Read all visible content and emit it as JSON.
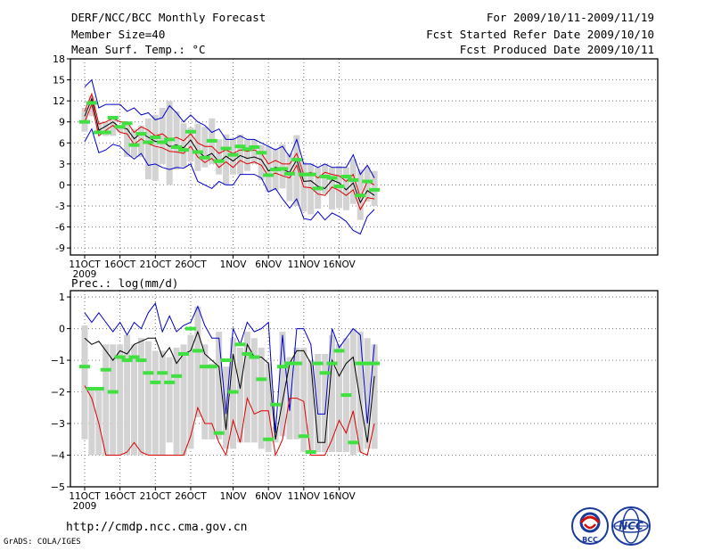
{
  "header": {
    "title": "DERF/NCC/BCC Monthly Forecast",
    "member_size": "Member Size=40",
    "variable": "Mean Surf. Temp.: °C",
    "period": "For 2009/10/11-2009/11/19",
    "started": "Fcst Started Refer Date 2009/10/10",
    "produced": "Fcst Produced Date 2009/10/11"
  },
  "precip_label": "Prec.: log(mm/d)",
  "url": "http://cmdp.ncc.cma.gov.cn",
  "credit": "GrADS: COLA/IGES",
  "logos": {
    "left_text": "BCC",
    "right_text": "NCC"
  },
  "colors": {
    "grey_bar": "#d3d3d3",
    "green": "#40e040",
    "max_line": "#0000cc",
    "min_line": "#dd0000",
    "mean_line": "#000000"
  },
  "chart_data": [
    {
      "type": "line",
      "title": "Mean Surf. Temp.: °C",
      "ylim": [
        -10,
        18
      ],
      "yticks": [
        -9,
        -6,
        -3,
        0,
        3,
        6,
        9,
        12,
        15,
        18
      ],
      "xlabels": [
        {
          "day": 0,
          "label": "11OCT",
          "sub": "2009"
        },
        {
          "day": 5,
          "label": "16OCT"
        },
        {
          "day": 10,
          "label": "21OCT"
        },
        {
          "day": 15,
          "label": "26OCT"
        },
        {
          "day": 21,
          "label": "1NOV"
        },
        {
          "day": 26,
          "label": "6NOV"
        },
        {
          "day": 31,
          "label": "11NOV"
        },
        {
          "day": 36,
          "label": "16NOV"
        }
      ],
      "series": [
        {
          "name": "max",
          "values": [
            14,
            15,
            11,
            11.5,
            11.5,
            11.5,
            10.5,
            11,
            10,
            10.3,
            9.3,
            9.6,
            11.3,
            10.3,
            9,
            10,
            9,
            8.5,
            7.5,
            8,
            6.5,
            6.5,
            7,
            6.5,
            6.5,
            6,
            5.5,
            5,
            5.5,
            4,
            6.5,
            3,
            3,
            2.5,
            3,
            2.5,
            2.5,
            2.5,
            4.3,
            1.5,
            2.8,
            1
          ]
        },
        {
          "name": "upper",
          "values": [
            10.5,
            13,
            8.7,
            9,
            9.5,
            9,
            9,
            7.5,
            8.3,
            7.8,
            7,
            7.3,
            6.5,
            6.8,
            6.3,
            7.3,
            6,
            5.5,
            5.5,
            4.5,
            5,
            4.5,
            5,
            4.8,
            5,
            4.5,
            3,
            3.5,
            3,
            3,
            4.5,
            1.5,
            1.8,
            1,
            1.8,
            1.5,
            1.3,
            0.5,
            1.5,
            -1.8,
            0.5,
            0
          ]
        },
        {
          "name": "mean",
          "values": [
            9.8,
            12.3,
            7.8,
            8.4,
            9,
            8.2,
            8,
            6.6,
            7.4,
            6.8,
            6.2,
            6.2,
            5.5,
            5.7,
            5.3,
            6.4,
            4.8,
            4,
            4.5,
            3.3,
            4.1,
            3.4,
            4.2,
            3.8,
            4,
            3.6,
            2,
            2.5,
            2.2,
            1.8,
            3.6,
            0.5,
            0.6,
            -0.2,
            -0.5,
            0.7,
            0.3,
            -0.7,
            0.3,
            -2.5,
            -0.8,
            -1.5
          ]
        },
        {
          "name": "lower",
          "values": [
            9,
            11.5,
            7,
            7.8,
            8.5,
            7.5,
            7.3,
            5.8,
            6.6,
            5.9,
            5.5,
            5.3,
            4.8,
            4.7,
            4.5,
            5.5,
            4,
            3.2,
            3.8,
            2.5,
            3.3,
            2.5,
            3.5,
            3,
            3.3,
            2.8,
            1.2,
            1.7,
            1.3,
            1,
            2.8,
            -0.3,
            -0.4,
            -1.3,
            -1.5,
            -0.3,
            -0.8,
            -1.5,
            -0.7,
            -3.5,
            -1.8,
            -2
          ]
        },
        {
          "name": "min",
          "values": [
            6.2,
            8,
            4.6,
            5,
            5.8,
            5.5,
            4.5,
            3.7,
            4.5,
            2.8,
            3,
            2.5,
            2.2,
            2.5,
            2.4,
            3,
            0.5,
            0,
            -0.5,
            0.5,
            0,
            0,
            1.5,
            1.5,
            1.5,
            1,
            -1,
            -0.5,
            -2,
            -3.3,
            -2,
            -4.8,
            -5,
            -3.8,
            -5,
            -4,
            -4.5,
            -5.2,
            -6.5,
            -7,
            -4.5,
            -3.5
          ]
        },
        {
          "name": "green",
          "values": [
            9,
            11.7,
            7.5,
            7.5,
            9.6,
            8.3,
            8.8,
            5.7,
            7.3,
            6.1,
            6.8,
            6.1,
            6.5,
            5.4,
            5,
            7.6,
            4.7,
            3.9,
            6.3,
            3.4,
            5.2,
            4.3,
            5.5,
            5.1,
            5.4,
            4.6,
            1.4,
            2.2,
            2.3,
            1.6,
            3.6,
            1.5,
            1.5,
            -0.5,
            1.2,
            1,
            -0.2,
            1.2,
            0.7,
            -1.5,
            0.5,
            -0.7
          ]
        },
        {
          "name": "bar_top",
          "values": [
            11,
            12.7,
            9,
            9,
            9.6,
            8.5,
            8.8,
            8,
            8.5,
            9.5,
            10,
            11,
            12,
            10.5,
            8.8,
            8.2,
            8.7,
            8.3,
            9.5,
            6.5,
            7.2,
            6.7,
            7.2,
            6.5,
            6.5,
            5.7,
            5.5,
            5.2,
            5.8,
            4.5,
            7.1,
            3.3,
            3,
            2.5,
            3,
            2.5,
            2.7,
            2.5,
            3.7,
            2.2,
            2.6,
            2
          ]
        },
        {
          "name": "bar_bottom",
          "values": [
            7.6,
            9.8,
            7.3,
            7,
            7,
            7.5,
            4,
            4,
            4,
            0.8,
            0.6,
            3,
            0,
            2.2,
            2.6,
            3.3,
            2,
            2.5,
            3,
            1.5,
            0,
            1.5,
            1.5,
            2,
            3,
            0.7,
            -1,
            -0.8,
            -0.5,
            -2.3,
            -3,
            -3.8,
            -4.2,
            -3.4,
            -1.3,
            -3.5,
            -3.3,
            -3.6,
            -2.7,
            -5,
            -2.4,
            -3
          ]
        }
      ]
    },
    {
      "type": "line",
      "title": "Prec.: log(mm/d)",
      "ylim": [
        -5,
        1.2
      ],
      "yticks": [
        -5,
        -4,
        -3,
        -2,
        -1,
        0,
        1
      ],
      "xlabels": [
        {
          "day": 0,
          "label": "11OCT",
          "sub": "2009"
        },
        {
          "day": 5,
          "label": "16OCT"
        },
        {
          "day": 10,
          "label": "21OCT"
        },
        {
          "day": 15,
          "label": "26OCT"
        },
        {
          "day": 21,
          "label": "1NOV"
        },
        {
          "day": 26,
          "label": "6NOV"
        },
        {
          "day": 31,
          "label": "11NOV"
        },
        {
          "day": 36,
          "label": "16NOV"
        }
      ],
      "series": [
        {
          "name": "max",
          "values": [
            0.5,
            0.2,
            0.5,
            0.2,
            -0.1,
            0.2,
            -0.2,
            0.2,
            0,
            0.5,
            0.8,
            -0.1,
            0.4,
            -0.1,
            0.1,
            0.2,
            0.7,
            0.1,
            -0.3,
            -0.3,
            -2.7,
            0,
            -0.5,
            0.2,
            -0.1,
            0,
            0.2,
            -3.3,
            -0.2,
            -2.6,
            0,
            0,
            -0.5,
            -2.7,
            -2.7,
            0,
            -0.6,
            -0.3,
            0,
            -0.2,
            -3,
            -0.5
          ]
        },
        {
          "name": "mean",
          "values": [
            -0.3,
            -0.5,
            -0.4,
            -0.7,
            -1,
            -0.7,
            -0.8,
            -0.5,
            -0.4,
            -0.3,
            -0.3,
            -0.9,
            -0.6,
            -1.1,
            -0.8,
            -0.7,
            -0.1,
            -0.8,
            -1,
            -1.2,
            -3.2,
            -0.8,
            -1.9,
            -0.5,
            -0.9,
            -0.9,
            -1.1,
            -3.5,
            -2.3,
            -1.1,
            -0.7,
            -0.7,
            -1.1,
            -3.6,
            -3.6,
            -1,
            -1.5,
            -1.1,
            -0.9,
            -2.3,
            -3.6,
            -1.5
          ]
        },
        {
          "name": "min",
          "values": [
            -1.8,
            -2.2,
            -3,
            -4,
            -4,
            -4,
            -3.9,
            -3.6,
            -3.9,
            -4,
            -4,
            -4,
            -4,
            -4,
            -4,
            -3.4,
            -2.5,
            -3,
            -3,
            -3.6,
            -4,
            -2.9,
            -3.6,
            -2.2,
            -2.7,
            -2.6,
            -2.6,
            -4,
            -3.5,
            -2.2,
            -2.2,
            -2.3,
            -4,
            -4,
            -4,
            -3.5,
            -2.9,
            -3.3,
            -2.6,
            -3.9,
            -4,
            -3
          ]
        },
        {
          "name": "green",
          "values": [
            -1.2,
            -1.9,
            -1.9,
            -1.3,
            -2,
            -0.9,
            -1,
            -0.9,
            -1,
            -1.4,
            -1.7,
            -1.4,
            -1.7,
            -1.5,
            -0.8,
            0,
            -0.7,
            -1.2,
            -1.2,
            -3.3,
            -1,
            -2,
            -0.5,
            -0.8,
            -0.9,
            -1.6,
            -3.5,
            -2.4,
            -1.2,
            -1.1,
            -1.1,
            -3.4,
            -3.9,
            -1.1,
            -1.4,
            -1.1,
            -0.7,
            -2.1,
            -3.6,
            -1.1,
            -1.1,
            -1.1
          ]
        },
        {
          "name": "bar_top",
          "values": [
            0.1,
            -1.9,
            -1.9,
            -0.5,
            -0.5,
            -0.5,
            -0.2,
            -0.5,
            -0.3,
            -0.4,
            -0.7,
            -0.7,
            -0.9,
            -0.6,
            -0.5,
            -0.2,
            0.7,
            -0.5,
            -1.1,
            -0.1,
            -1.2,
            -0.3,
            -0.6,
            -0.1,
            -0.3,
            -0.6,
            -1.1,
            -3.1,
            -0.1,
            -0.9,
            -0.6,
            -0.6,
            -1,
            -0.8,
            -0.8,
            -0.2,
            -0.5,
            -0.3,
            0,
            -0.1,
            -0.3,
            -0.5
          ]
        },
        {
          "name": "bar_bottom",
          "values": [
            -3.5,
            -4,
            -4,
            -4,
            -4,
            -4,
            -4,
            -4,
            -4,
            -4,
            -4,
            -4,
            -3.6,
            -4,
            -4,
            -3.8,
            -2.8,
            -3.5,
            -3.5,
            -3.5,
            -3.8,
            -3.8,
            -3.6,
            -3.6,
            -3.6,
            -3.8,
            -3.9,
            -3.6,
            -3.4,
            -3.5,
            -3.5,
            -3.9,
            -3.9,
            -3.9,
            -3.9,
            -3.9,
            -3.9,
            -3.9,
            -4,
            -3.9,
            -3.8,
            -3.8
          ]
        }
      ]
    }
  ]
}
